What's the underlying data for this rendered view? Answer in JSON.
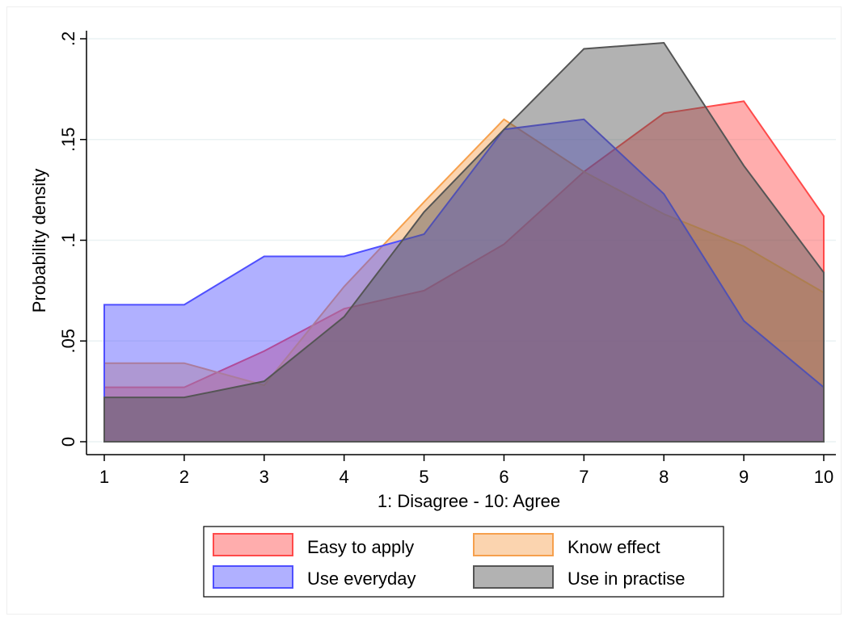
{
  "chart_data": {
    "type": "area",
    "title": "",
    "xlabel": "1: Disagree - 10: Agree",
    "ylabel": "Probability density",
    "x": [
      1,
      2,
      3,
      4,
      5,
      6,
      7,
      8,
      9,
      10
    ],
    "x_tick_labels": [
      "1",
      "2",
      "3",
      "4",
      "5",
      "6",
      "7",
      "8",
      "9",
      "10"
    ],
    "xlim": [
      1,
      10
    ],
    "ylim": [
      0,
      0.2
    ],
    "y_ticks": [
      0,
      0.05,
      0.1,
      0.15,
      0.2
    ],
    "y_tick_labels": [
      "0",
      ".05",
      ".1",
      ".15",
      ".2"
    ],
    "grid": true,
    "legend_position": "bottom",
    "series": [
      {
        "name": "Easy to apply",
        "color": "#ff4a4a",
        "values": [
          0.027,
          0.027,
          0.045,
          0.066,
          0.075,
          0.098,
          0.134,
          0.163,
          0.169,
          0.112
        ]
      },
      {
        "name": "Know effect",
        "color": "#f6a04d",
        "values": [
          0.039,
          0.039,
          0.028,
          0.077,
          0.119,
          0.16,
          0.134,
          0.113,
          0.097,
          0.074
        ]
      },
      {
        "name": "Use everyday",
        "color": "#4f4fff",
        "values": [
          0.068,
          0.068,
          0.092,
          0.092,
          0.103,
          0.155,
          0.16,
          0.123,
          0.06,
          0.027
        ]
      },
      {
        "name": "Use in practise",
        "color": "#555555",
        "values": [
          0.022,
          0.022,
          0.03,
          0.062,
          0.114,
          0.155,
          0.195,
          0.198,
          0.137,
          0.084
        ]
      }
    ]
  }
}
